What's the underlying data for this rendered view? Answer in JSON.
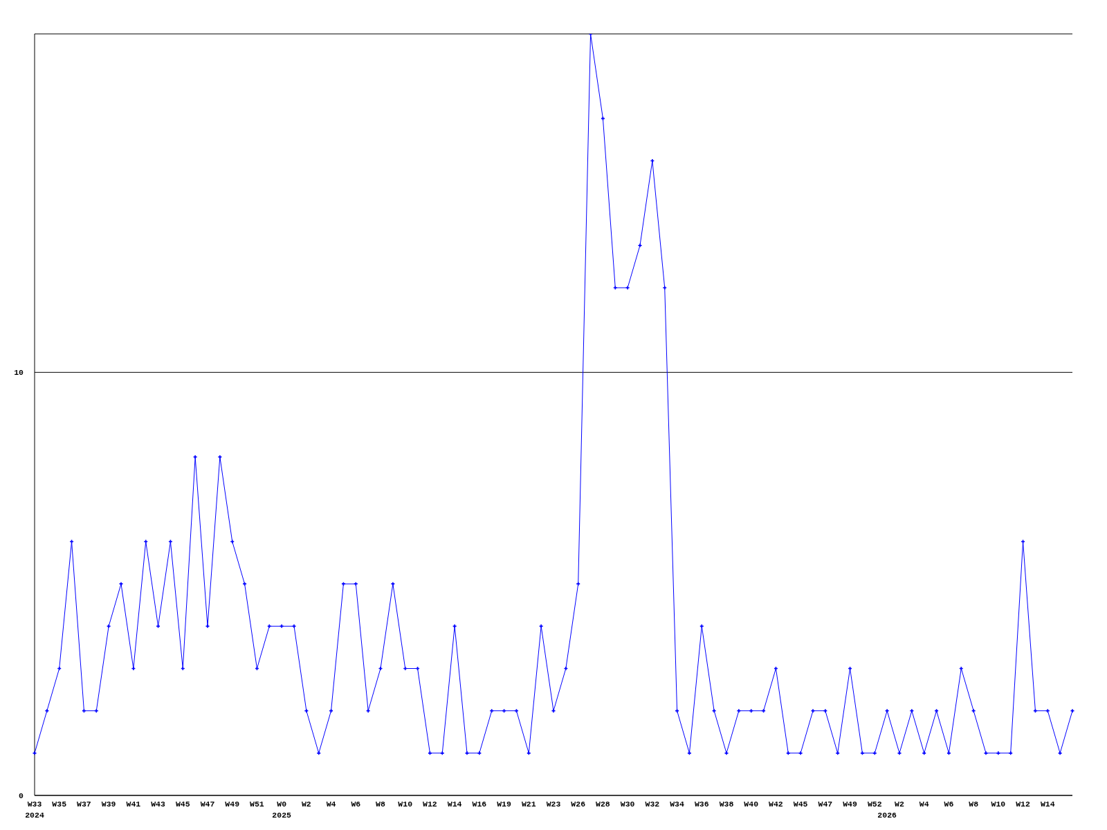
{
  "chart_data": {
    "type": "line",
    "categories": [
      "W33\n2024",
      null,
      "W35",
      null,
      "W37",
      null,
      "W39",
      null,
      "W41",
      null,
      "W43",
      null,
      "W45",
      null,
      "W47",
      null,
      "W49",
      null,
      "W51",
      null,
      "W0\n2025",
      null,
      "W2",
      null,
      "W4",
      null,
      "W6",
      null,
      "W8",
      null,
      "W10",
      null,
      "W12",
      null,
      "W14",
      null,
      "W16",
      null,
      "W19",
      null,
      "W21",
      null,
      "W23",
      null,
      "W26",
      null,
      "W28",
      null,
      "W30",
      null,
      "W32",
      null,
      "W34",
      null,
      "W36",
      null,
      "W38",
      null,
      "W40",
      null,
      "W42",
      null,
      "W45",
      null,
      "W47",
      null,
      "W49",
      null,
      "W52",
      "\n2026",
      "W2",
      null,
      "W4",
      null,
      "W6",
      null,
      "W8",
      null,
      "W10",
      null,
      "W12",
      null,
      "W14",
      null,
      null
    ],
    "series": [
      {
        "color": "#0000ff",
        "values": [
          1,
          2,
          3,
          6,
          2,
          2,
          4,
          5,
          3,
          6,
          4,
          6,
          3,
          8,
          4,
          8,
          6,
          5,
          3,
          4,
          4,
          4,
          2,
          1,
          2,
          5,
          5,
          2,
          3,
          5,
          3,
          3,
          1,
          1,
          4,
          1,
          1,
          2,
          2,
          2,
          1,
          4,
          2,
          3,
          5,
          18,
          16,
          12,
          12,
          13,
          15,
          12,
          2,
          1,
          4,
          2,
          1,
          2,
          2,
          2,
          3,
          1,
          1,
          2,
          2,
          1,
          3,
          1,
          1,
          2,
          1,
          2,
          1,
          2,
          1,
          3,
          2,
          1,
          1,
          1,
          6,
          2,
          2,
          1,
          2
        ]
      }
    ],
    "ylim": [
      0,
      18
    ],
    "yticks": [
      0,
      10
    ],
    "grid": "y",
    "marker": "cross",
    "line_style": "solid"
  }
}
